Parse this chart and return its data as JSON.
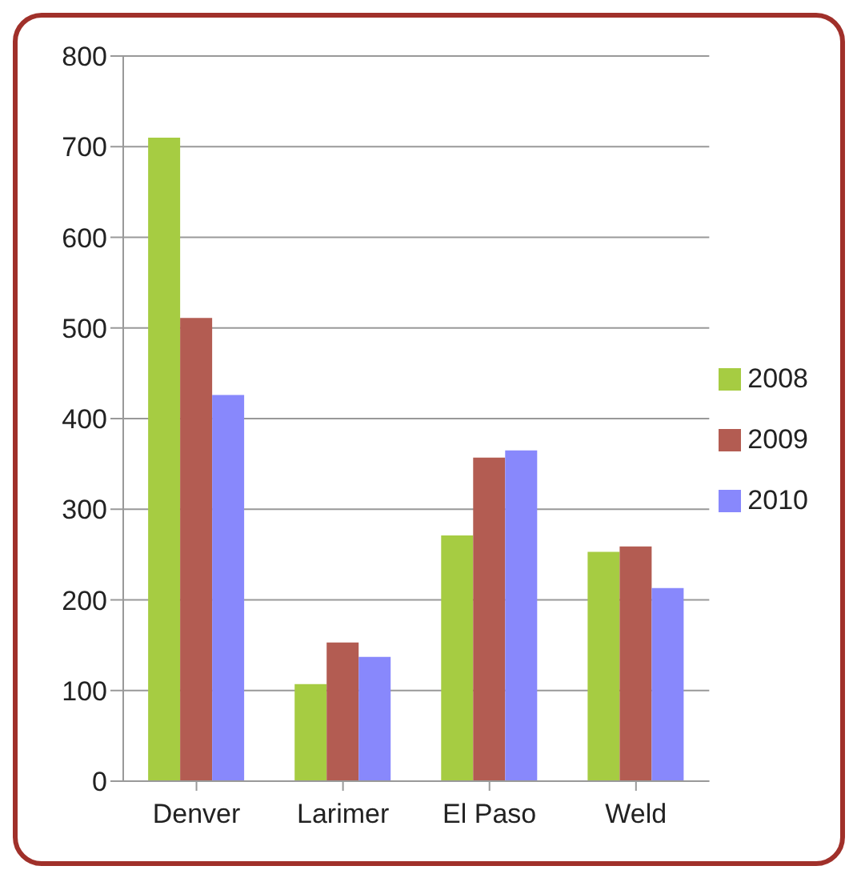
{
  "chart_data": {
    "type": "bar",
    "categories": [
      "Denver",
      "Larimer",
      "El Paso",
      "Weld"
    ],
    "series": [
      {
        "name": "2008",
        "color": "#a6cc42",
        "values": [
          710,
          107,
          271,
          253
        ]
      },
      {
        "name": "2009",
        "color": "#b35c52",
        "values": [
          511,
          153,
          357,
          259
        ]
      },
      {
        "name": "2010",
        "color": "#8888fc",
        "values": [
          426,
          137,
          365,
          213
        ]
      }
    ],
    "ylim": [
      0,
      800
    ],
    "yticks": [
      0,
      100,
      200,
      300,
      400,
      500,
      600,
      700,
      800
    ],
    "grid": "y",
    "legend": "right"
  }
}
